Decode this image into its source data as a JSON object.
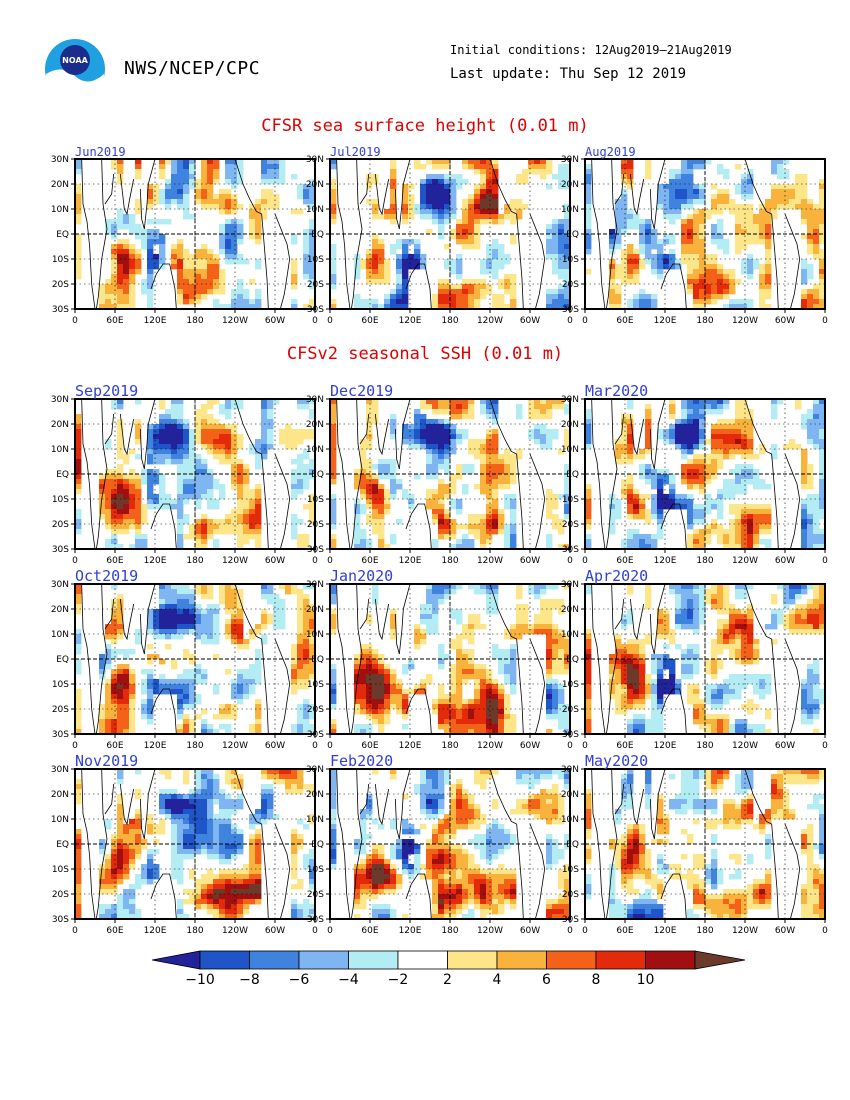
{
  "header": {
    "org": "NWS/NCEP/CPC",
    "initial_conditions": "Initial conditions: 12Aug2019–21Aug2019",
    "last_update": "Last update: Thu Sep 12 2019"
  },
  "colors": {
    "title_red": "#e00000",
    "month_blue": "#2f3fd8",
    "levels": [
      "#22229a",
      "#1f55c9",
      "#3f83de",
      "#7fb6f2",
      "#b4ecf4",
      "#ffffff",
      "#fde58a",
      "#f9b23c",
      "#f4621a",
      "#e32b0c",
      "#a01010",
      "#6b3a2a"
    ]
  },
  "chart_data": {
    "type": "heatmap",
    "variable_top": "CFSR sea surface height (0.01 m)",
    "variable_bottom": "CFSv2 seasonal SSH (0.01 m)",
    "lat_labels": [
      "30N",
      "20N",
      "10N",
      "EQ",
      "10S",
      "20S",
      "30S"
    ],
    "lon_labels": [
      "0",
      "60E",
      "120E",
      "180",
      "120W",
      "60W",
      "0"
    ],
    "lat_range": [
      -30,
      30
    ],
    "lon_range": [
      0,
      360
    ],
    "colorbar_ticks": [
      "−10",
      "−8",
      "−6",
      "−4",
      "−2",
      "2",
      "4",
      "6",
      "8",
      "10"
    ],
    "colorbar_levels": [
      -10,
      -8,
      -6,
      -4,
      -2,
      2,
      4,
      6,
      8,
      10
    ],
    "observed_panels": [
      "Jun2019",
      "Jul2019",
      "Aug2019"
    ],
    "forecast_panels": [
      "Sep2019",
      "Dec2019",
      "Mar2020",
      "Oct2019",
      "Jan2020",
      "Apr2020",
      "Nov2019",
      "Feb2020",
      "May2020"
    ]
  }
}
